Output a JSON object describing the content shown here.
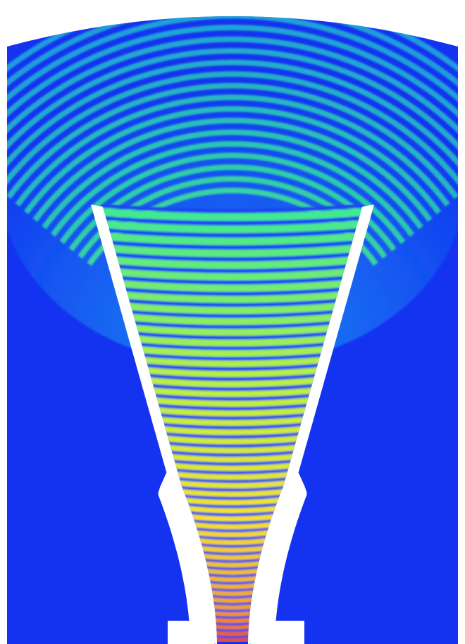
{
  "figure": {
    "kind": "acoustic-horn-pressure-field",
    "colormap": [
      "#1a33f0",
      "#19c8f5",
      "#33e89a",
      "#b8f045",
      "#f5e428",
      "#f5a020",
      "#e81d1d"
    ],
    "background_field_color": "#1433f0",
    "horn_wall_color": "#ffffff",
    "band_count": 44,
    "peak_amplitude_at_throat": 1.0,
    "amplitude_at_mouth": 0.35
  }
}
